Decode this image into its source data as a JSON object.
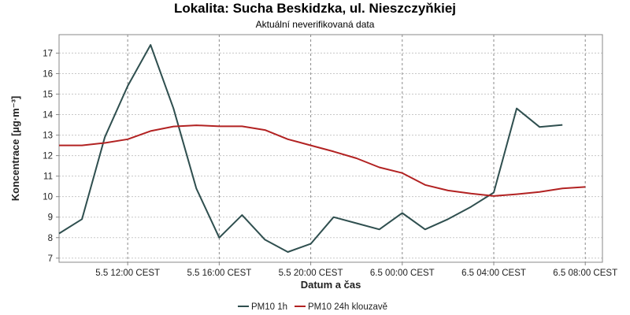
{
  "chart_data": {
    "type": "line",
    "title": "Lokalita: Sucha Beskidzka, ul. Nieszczyňkiej",
    "subtitle": "Aktuální neverifikovaná data",
    "xlabel": "Datum a čas",
    "ylabel": "Koncentrace [µg·m⁻³]",
    "ylim": [
      6.8,
      17.9
    ],
    "xlim": [
      "2024-05-05T09:00",
      "2024-05-06T08:45"
    ],
    "y_ticks": [
      7,
      8,
      9,
      10,
      11,
      12,
      13,
      14,
      15,
      16,
      17
    ],
    "x_ticks": [
      {
        "x": "2024-05-05T12:00",
        "label": "5.5 12:00 CEST"
      },
      {
        "x": "2024-05-05T16:00",
        "label": "5.5 16:00 CEST"
      },
      {
        "x": "2024-05-05T20:00",
        "label": "5.5 20:00 CEST"
      },
      {
        "x": "2024-05-06T00:00",
        "label": "6.5 00:00 CEST"
      },
      {
        "x": "2024-05-06T04:00",
        "label": "6.5 04:00 CEST"
      },
      {
        "x": "2024-05-06T08:00",
        "label": "6.5 08:00 CEST"
      }
    ],
    "x": [
      "2024-05-05T09:00",
      "2024-05-05T10:00",
      "2024-05-05T11:00",
      "2024-05-05T12:00",
      "2024-05-05T13:00",
      "2024-05-05T14:00",
      "2024-05-05T15:00",
      "2024-05-05T16:00",
      "2024-05-05T17:00",
      "2024-05-05T18:00",
      "2024-05-05T19:00",
      "2024-05-05T20:00",
      "2024-05-05T21:00",
      "2024-05-05T22:00",
      "2024-05-05T23:00",
      "2024-05-06T00:00",
      "2024-05-06T01:00",
      "2024-05-06T02:00",
      "2024-05-06T03:00",
      "2024-05-06T04:00",
      "2024-05-06T05:00",
      "2024-05-06T06:00",
      "2024-05-06T07:00",
      "2024-05-06T08:00"
    ],
    "series": [
      {
        "name": "PM10 1h",
        "color": "#2f4f4f",
        "values": [
          8.2,
          8.9,
          12.9,
          15.4,
          17.4,
          14.3,
          10.4,
          8.0,
          9.1,
          7.9,
          7.3,
          7.7,
          9.0,
          8.7,
          8.4,
          9.2,
          8.4,
          8.9,
          9.5,
          10.2,
          14.3,
          13.4,
          13.5,
          null
        ]
      },
      {
        "name": "PM10 24h klouzavě",
        "color": "#b22222",
        "values": [
          12.5,
          12.5,
          12.62,
          12.8,
          13.2,
          13.42,
          13.48,
          13.43,
          13.43,
          13.25,
          12.8,
          12.5,
          12.2,
          11.87,
          11.43,
          11.15,
          10.57,
          10.3,
          10.15,
          10.03,
          10.12,
          10.23,
          10.4,
          10.47
        ]
      }
    ],
    "grid": true,
    "legend_position": "bottom"
  }
}
